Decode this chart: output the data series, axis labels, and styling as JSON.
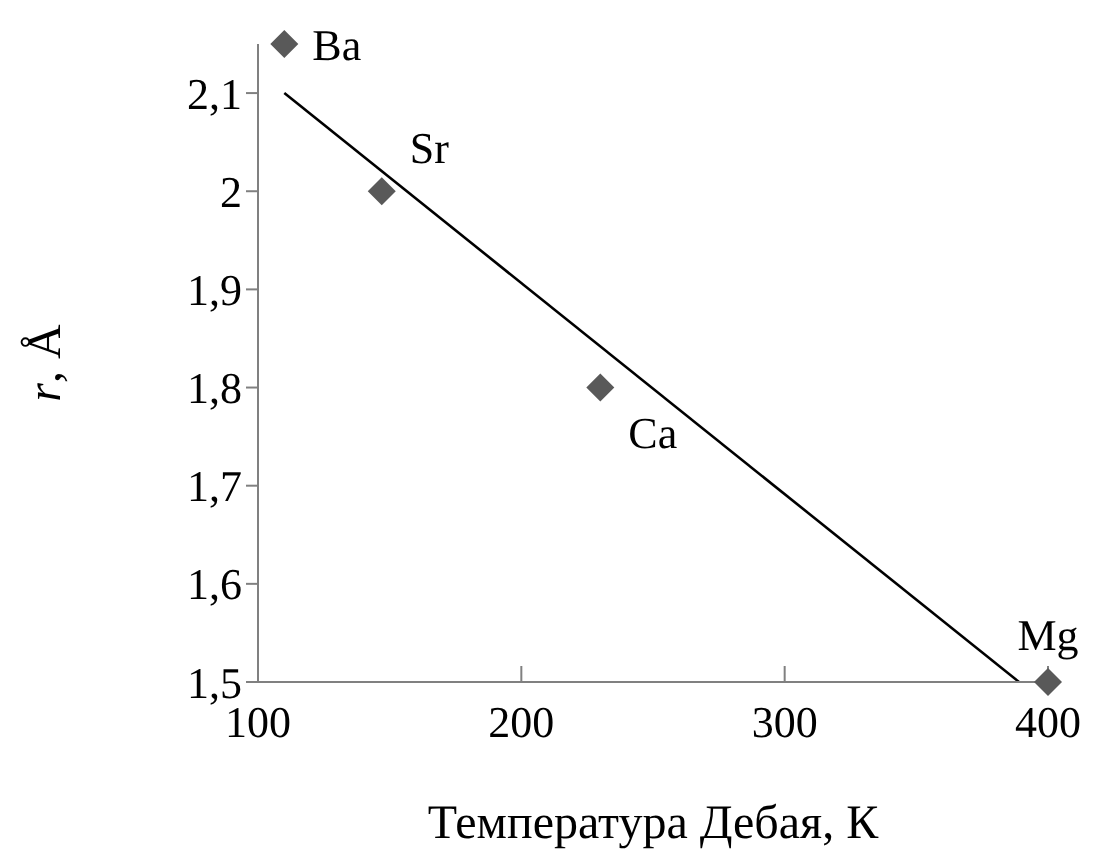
{
  "chart_data": {
    "type": "scatter",
    "xlabel": "Температура Дебая, К",
    "ylabel": "r, Å",
    "x": [
      110,
      147,
      230,
      400
    ],
    "series": [
      {
        "color": "#595959",
        "marker": "diamond",
        "values": [
          2.15,
          2.0,
          1.8,
          1.5
        ]
      },
      {
        "type": "line",
        "color": "#000000",
        "marker": "none",
        "x": [
          110,
          389
        ],
        "values": [
          2.1,
          1.5
        ]
      }
    ],
    "xlim": [
      100,
      400
    ],
    "xticks": [
      100,
      200,
      300,
      400
    ],
    "ylim": [
      1.5,
      2.15
    ],
    "yticks": [
      {
        "value": 1.5,
        "label": "1,5"
      },
      {
        "value": 1.6,
        "label": "1,6"
      },
      {
        "value": 1.7,
        "label": "1,7"
      },
      {
        "value": 1.8,
        "label": "1,8"
      },
      {
        "value": 1.9,
        "label": "1,9"
      },
      {
        "value": 2,
        "label": "2"
      },
      {
        "value": 2.1,
        "label": "2,1"
      }
    ],
    "annotations": [
      {
        "text": "Ba",
        "x": 110,
        "y": 2.15
      },
      {
        "text": "Sr",
        "x": 147,
        "y": 2.0
      },
      {
        "text": "Ca",
        "x": 230,
        "y": 1.8
      },
      {
        "text": "Mg",
        "x": 400,
        "y": 1.5
      }
    ],
    "grid": false,
    "legend": false
  }
}
